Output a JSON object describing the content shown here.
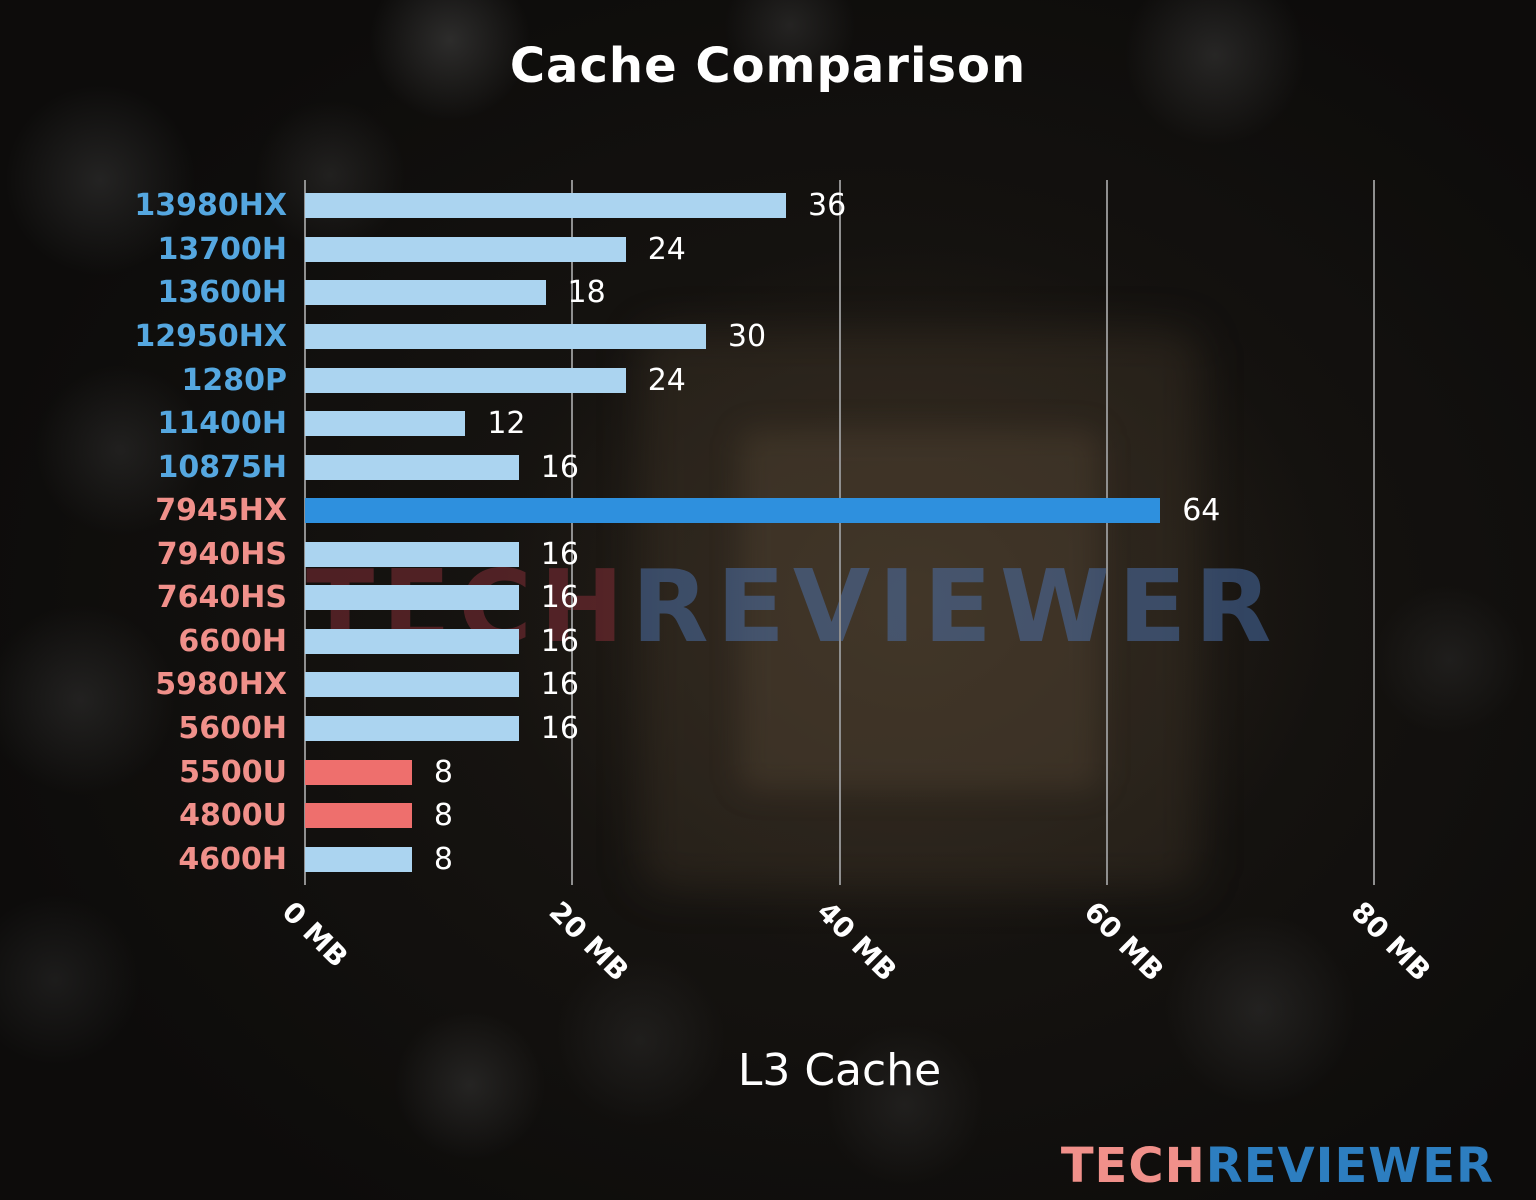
{
  "title": "Cache Comparison",
  "xlabel": "L3 Cache",
  "watermark": {
    "tech": "TECH",
    "reviewer": "REVIEWER"
  },
  "logo": {
    "tech": "TECH",
    "reviewer": "REVIEWER"
  },
  "colors": {
    "intel_label": "#55a7e0",
    "amd_label": "#f0908a",
    "bar_default": "#abd4f0",
    "bar_highlight": "#2e90de",
    "bar_red": "#ee6f6d",
    "value_label": "#ffffff",
    "grid": "#8f8f8f",
    "title": "#ffffff"
  },
  "chart_data": {
    "type": "bar",
    "orientation": "horizontal",
    "title": "Cache Comparison",
    "xlabel": "L3 Cache",
    "xlim": [
      0,
      80
    ],
    "grid": true,
    "xticks": [
      {
        "value": 0,
        "label": "0 MB"
      },
      {
        "value": 20,
        "label": "20 MB"
      },
      {
        "value": 40,
        "label": "40 MB"
      },
      {
        "value": 60,
        "label": "60 MB"
      },
      {
        "value": 80,
        "label": "80 MB"
      }
    ],
    "bars": [
      {
        "label": "13980HX",
        "value": 36,
        "group": "intel",
        "color": "default"
      },
      {
        "label": "13700H",
        "value": 24,
        "group": "intel",
        "color": "default"
      },
      {
        "label": "13600H",
        "value": 18,
        "group": "intel",
        "color": "default"
      },
      {
        "label": "12950HX",
        "value": 30,
        "group": "intel",
        "color": "default"
      },
      {
        "label": "1280P",
        "value": 24,
        "group": "intel",
        "color": "default"
      },
      {
        "label": "11400H",
        "value": 12,
        "group": "intel",
        "color": "default"
      },
      {
        "label": "10875H",
        "value": 16,
        "group": "intel",
        "color": "default"
      },
      {
        "label": "7945HX",
        "value": 64,
        "group": "amd",
        "color": "highlight"
      },
      {
        "label": "7940HS",
        "value": 16,
        "group": "amd",
        "color": "default"
      },
      {
        "label": "7640HS",
        "value": 16,
        "group": "amd",
        "color": "default"
      },
      {
        "label": "6600H",
        "value": 16,
        "group": "amd",
        "color": "default"
      },
      {
        "label": "5980HX",
        "value": 16,
        "group": "amd",
        "color": "default"
      },
      {
        "label": "5600H",
        "value": 16,
        "group": "amd",
        "color": "default"
      },
      {
        "label": "5500U",
        "value": 8,
        "group": "amd",
        "color": "red"
      },
      {
        "label": "4800U",
        "value": 8,
        "group": "amd",
        "color": "red"
      },
      {
        "label": "4600H",
        "value": 8,
        "group": "amd",
        "color": "default"
      }
    ]
  }
}
